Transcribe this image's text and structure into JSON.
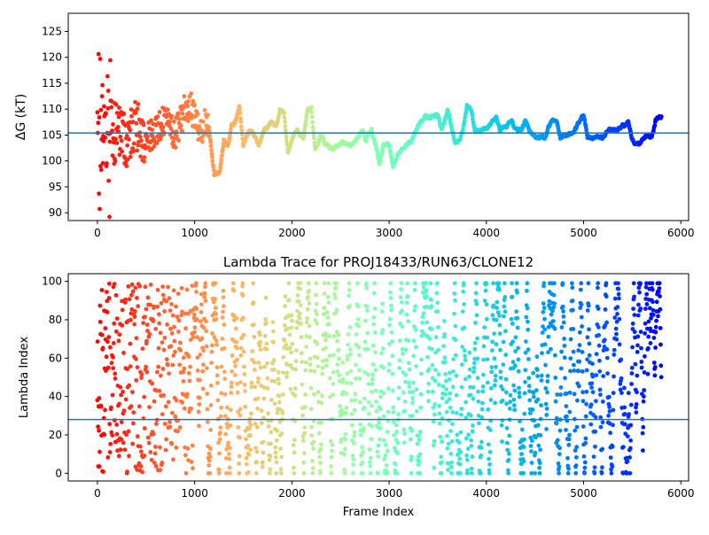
{
  "chart_data": [
    {
      "type": "scatter",
      "title": "",
      "xlabel": "",
      "ylabel": "ΔG (kT)",
      "xlim": [
        -300,
        6080
      ],
      "ylim": [
        88.5,
        128.5
      ],
      "x_ticks": [
        0,
        1000,
        2000,
        3000,
        4000,
        5000,
        6000
      ],
      "y_ticks": [
        90,
        95,
        100,
        105,
        110,
        115,
        120,
        125
      ],
      "hline": 105.4,
      "hline_color": "#1f77b4",
      "colormap": "rainbow",
      "grid": false,
      "x_max": 5800,
      "trace_keypoints": [
        [
          0,
          105
        ],
        [
          60,
          108
        ],
        [
          120,
          104
        ],
        [
          200,
          106
        ],
        [
          300,
          104
        ],
        [
          400,
          107
        ],
        [
          500,
          104
        ],
        [
          600,
          106
        ],
        [
          700,
          108
        ],
        [
          800,
          105
        ],
        [
          900,
          110
        ],
        [
          950,
          111
        ],
        [
          1000,
          108
        ],
        [
          1050,
          106
        ],
        [
          1100,
          107
        ],
        [
          1150,
          106
        ],
        [
          1200,
          97.5
        ],
        [
          1260,
          98
        ],
        [
          1300,
          104
        ],
        [
          1340,
          102.5
        ],
        [
          1380,
          107
        ],
        [
          1420,
          107.5
        ],
        [
          1460,
          110.5
        ],
        [
          1500,
          103
        ],
        [
          1560,
          106
        ],
        [
          1620,
          105
        ],
        [
          1660,
          103
        ],
        [
          1720,
          106
        ],
        [
          1780,
          107.5
        ],
        [
          1840,
          107
        ],
        [
          1880,
          110
        ],
        [
          1920,
          109
        ],
        [
          1960,
          102
        ],
        [
          2020,
          105
        ],
        [
          2060,
          106
        ],
        [
          2120,
          104
        ],
        [
          2160,
          110
        ],
        [
          2200,
          110
        ],
        [
          2240,
          102
        ],
        [
          2300,
          105
        ],
        [
          2340,
          103.5
        ],
        [
          2400,
          102.5
        ],
        [
          2460,
          103
        ],
        [
          2520,
          103.5
        ],
        [
          2600,
          103
        ],
        [
          2680,
          104.5
        ],
        [
          2720,
          106
        ],
        [
          2760,
          104
        ],
        [
          2820,
          106
        ],
        [
          2860,
          103
        ],
        [
          2900,
          99.5
        ],
        [
          2940,
          103
        ],
        [
          3000,
          103
        ],
        [
          3040,
          99
        ],
        [
          3100,
          101.5
        ],
        [
          3160,
          103
        ],
        [
          3240,
          104
        ],
        [
          3300,
          107
        ],
        [
          3360,
          108.5
        ],
        [
          3420,
          108.5
        ],
        [
          3500,
          109
        ],
        [
          3540,
          106
        ],
        [
          3560,
          107
        ],
        [
          3600,
          110
        ],
        [
          3640,
          107
        ],
        [
          3680,
          103.5
        ],
        [
          3720,
          104
        ],
        [
          3760,
          106
        ],
        [
          3800,
          110.5
        ],
        [
          3840,
          110
        ],
        [
          3880,
          106
        ],
        [
          3960,
          106
        ],
        [
          4040,
          107
        ],
        [
          4100,
          108.5
        ],
        [
          4140,
          106
        ],
        [
          4200,
          106.5
        ],
        [
          4260,
          108
        ],
        [
          4300,
          106
        ],
        [
          4360,
          106
        ],
        [
          4400,
          108
        ],
        [
          4440,
          106
        ],
        [
          4500,
          104.5
        ],
        [
          4600,
          104.5
        ],
        [
          4660,
          107.5
        ],
        [
          4720,
          108
        ],
        [
          4760,
          104.5
        ],
        [
          4820,
          105
        ],
        [
          4900,
          105
        ],
        [
          4960,
          108
        ],
        [
          5000,
          109
        ],
        [
          5040,
          104.5
        ],
        [
          5100,
          104.5
        ],
        [
          5200,
          104.5
        ],
        [
          5260,
          106
        ],
        [
          5340,
          106
        ],
        [
          5420,
          107
        ],
        [
          5460,
          107.5
        ],
        [
          5500,
          104
        ],
        [
          5540,
          103
        ],
        [
          5600,
          104
        ],
        [
          5660,
          105
        ],
        [
          5700,
          104.5
        ],
        [
          5740,
          108
        ],
        [
          5780,
          108.5
        ]
      ]
    },
    {
      "type": "scatter",
      "title": "Lambda Trace for PROJ18433/RUN63/CLONE12",
      "xlabel": "Frame Index",
      "ylabel": "Lambda Index",
      "xlim": [
        -300,
        6080
      ],
      "ylim": [
        -4,
        104
      ],
      "x_ticks": [
        0,
        1000,
        2000,
        3000,
        4000,
        5000,
        6000
      ],
      "y_ticks": [
        0,
        20,
        40,
        60,
        80,
        100
      ],
      "hline": 28,
      "hline_color": "#1f77b4",
      "colormap": "rainbow",
      "grid": false,
      "x_max": 5800
    }
  ]
}
